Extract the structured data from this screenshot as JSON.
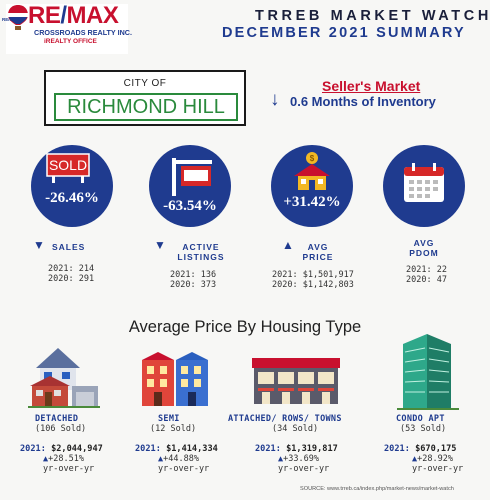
{
  "logo": {
    "brand_re": "RE",
    "brand_slash": "/",
    "brand_max": "MAX",
    "tiny": "RE/MAX",
    "office": "CROSSROADS REALTY INC.",
    "office_tag": "iREALTY OFFICE"
  },
  "header": {
    "line1": "TRREB MARKET WATCH",
    "line2": "DECEMBER 2021 SUMMARY"
  },
  "city": {
    "prefix": "CITY OF",
    "name": "RICHMOND HILL"
  },
  "market": {
    "status": "Seller's Market",
    "arrow": "↓",
    "inventory": "0.6 Months of Inventory"
  },
  "stats": [
    {
      "icon": "sold-sign-icon",
      "icon_text": "SOLD",
      "pct": "-26.46%",
      "trend": "▼",
      "label1": "SALES",
      "label2": "",
      "v2021": "2021: 214",
      "v2020": "2020: 291"
    },
    {
      "icon": "listing-sign-icon",
      "pct": "-63.54%",
      "trend": "▼",
      "label1": "ACTIVE",
      "label2": "LISTINGS",
      "v2021": "2021: 136",
      "v2020": "2020: 373"
    },
    {
      "icon": "house-price-icon",
      "pct": "+31.42%",
      "trend": "▲",
      "label1": "AVG",
      "label2": "PRICE",
      "v2021": "2021: $1,501,917",
      "v2020": "2020: $1,142,803"
    },
    {
      "icon": "calendar-icon",
      "pct": "",
      "trend": "",
      "label1": "AVG",
      "label2": "PDOM",
      "v2021": "2021: 22",
      "v2020": "2020: 47"
    }
  ],
  "housing_title": "Average Price By Housing Type",
  "housing": [
    {
      "icon": "detached-house-icon",
      "label": "DETACHED",
      "sold": "(106 Sold)",
      "year": "2021:",
      "price": "$2,044,947",
      "trend": "▲",
      "change": "+28.51%",
      "yoy": "yr-over-yr"
    },
    {
      "icon": "semi-house-icon",
      "label": "SEMI",
      "sold": "(12 Sold)",
      "year": "2021:",
      "price": "$1,414,334",
      "trend": "▲",
      "change": "+44.88%",
      "yoy": "yr-over-yr"
    },
    {
      "icon": "townhouse-icon",
      "label": "ATTACHED/ ROWS/ TOWNS",
      "sold": "(34 Sold)",
      "year": "2021:",
      "price": "$1,319,817",
      "trend": "▲",
      "change": "+33.69%",
      "yoy": "yr-over-yr"
    },
    {
      "icon": "condo-tower-icon",
      "label": "CONDO APT",
      "sold": "(53 Sold)",
      "year": "2021:",
      "price": "$670,175",
      "trend": "▲",
      "change": "+28.92%",
      "yoy": "yr-over-yr"
    }
  ],
  "source": "SOURCE:   www.trreb.ca/index.php/market-news/market-watch",
  "colors": {
    "navy": "#1f3b8f",
    "red": "#c8102e",
    "green": "#2a8a3c",
    "background": "#f7f7f5"
  }
}
